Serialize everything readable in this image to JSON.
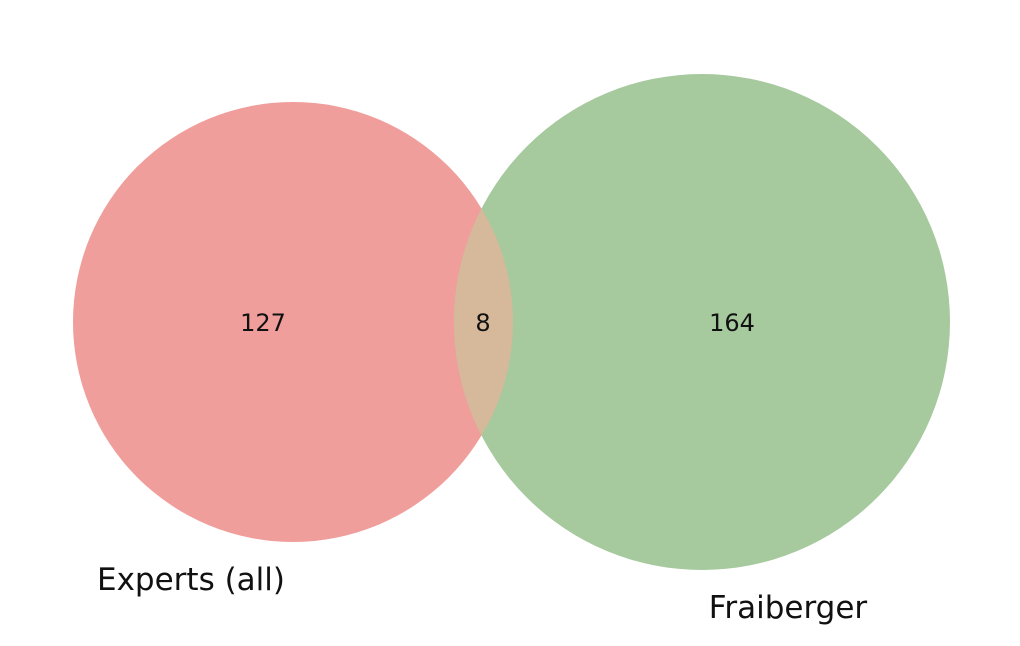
{
  "venn": {
    "sets": [
      {
        "label": "Experts (all)",
        "only_count": "127",
        "color": "#f09e9b"
      },
      {
        "label": "Fraiberger",
        "only_count": "164",
        "color": "#a6c99e"
      }
    ],
    "intersection": {
      "count": "8",
      "color": "#d6b99a"
    }
  }
}
